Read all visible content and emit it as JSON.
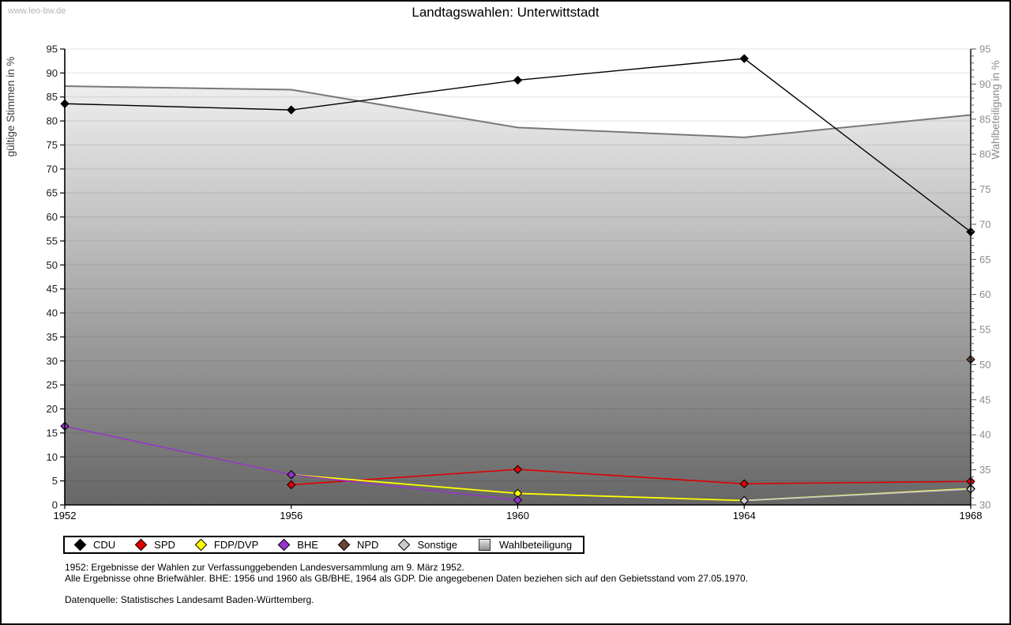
{
  "watermark": "www.leo-bw.de",
  "title": "Landtagswahlen: Unterwittstadt",
  "chart_data": {
    "type": "line",
    "x": [
      1952,
      1956,
      1960,
      1964,
      1968
    ],
    "axes": {
      "left": {
        "label": "gültige Stimmen in %",
        "min": 0,
        "max": 95,
        "tick_step": 5
      },
      "right": {
        "label": "Wahlbeteiligung in %",
        "min": 30,
        "max": 95,
        "tick_step": 5,
        "minor_step": 1
      }
    },
    "grid": true,
    "legend_position": "bottom",
    "series": [
      {
        "name": "CDU",
        "axis": "left",
        "color": "#000000",
        "marker": "diamond",
        "line_width": 1.4,
        "values": [
          83.6,
          82.3,
          88.5,
          93.0,
          56.9
        ]
      },
      {
        "name": "SPD",
        "axis": "left",
        "color": "#e00000",
        "marker": "diamond",
        "line_width": 1.6,
        "values": [
          null,
          4.2,
          7.4,
          4.4,
          4.9
        ]
      },
      {
        "name": "FDP/DVP",
        "axis": "left",
        "color": "#ffff00",
        "marker": "diamond",
        "line_width": 1.8,
        "values": [
          null,
          6.3,
          2.4,
          0.9,
          3.4
        ]
      },
      {
        "name": "BHE",
        "axis": "left",
        "color": "#9932cc",
        "marker": "diamond",
        "line_width": 1.4,
        "values": [
          16.4,
          6.3,
          1.0,
          null,
          null
        ]
      },
      {
        "name": "NPD",
        "axis": "left",
        "color": "#6a4436",
        "marker": "diamond",
        "line_width": 1.4,
        "values": [
          null,
          null,
          null,
          null,
          30.3
        ]
      },
      {
        "name": "Sonstige",
        "axis": "left",
        "color": "#cccccc",
        "marker": "diamond",
        "line_width": 1.6,
        "values": [
          null,
          null,
          null,
          0.9,
          3.3
        ]
      },
      {
        "name": "Wahlbeteiligung",
        "axis": "right",
        "color": "#787878",
        "marker": "area",
        "line_width": 2.0,
        "values": [
          89.7,
          89.2,
          83.8,
          82.4,
          85.6
        ]
      }
    ]
  },
  "footnotes": {
    "line1": "1952: Ergebnisse der Wahlen zur Verfassunggebenden Landesversammlung am 9. März 1952.",
    "line2": "Alle Ergebnisse ohne Briefwähler. BHE: 1956 und 1960 als GB/BHE, 1964 als GDP. Die angegebenen Daten beziehen sich auf den Gebietsstand vom 27.05.1970.",
    "source": "Datenquelle: Statistisches Landesamt Baden-Württemberg."
  },
  "colors": {
    "grid_line": "#e4e4e4",
    "axis_line": "#000000",
    "right_axis_text": "#8c8c8c",
    "left_axis_text": "#1a1a1a",
    "area_edge": "#787878"
  }
}
